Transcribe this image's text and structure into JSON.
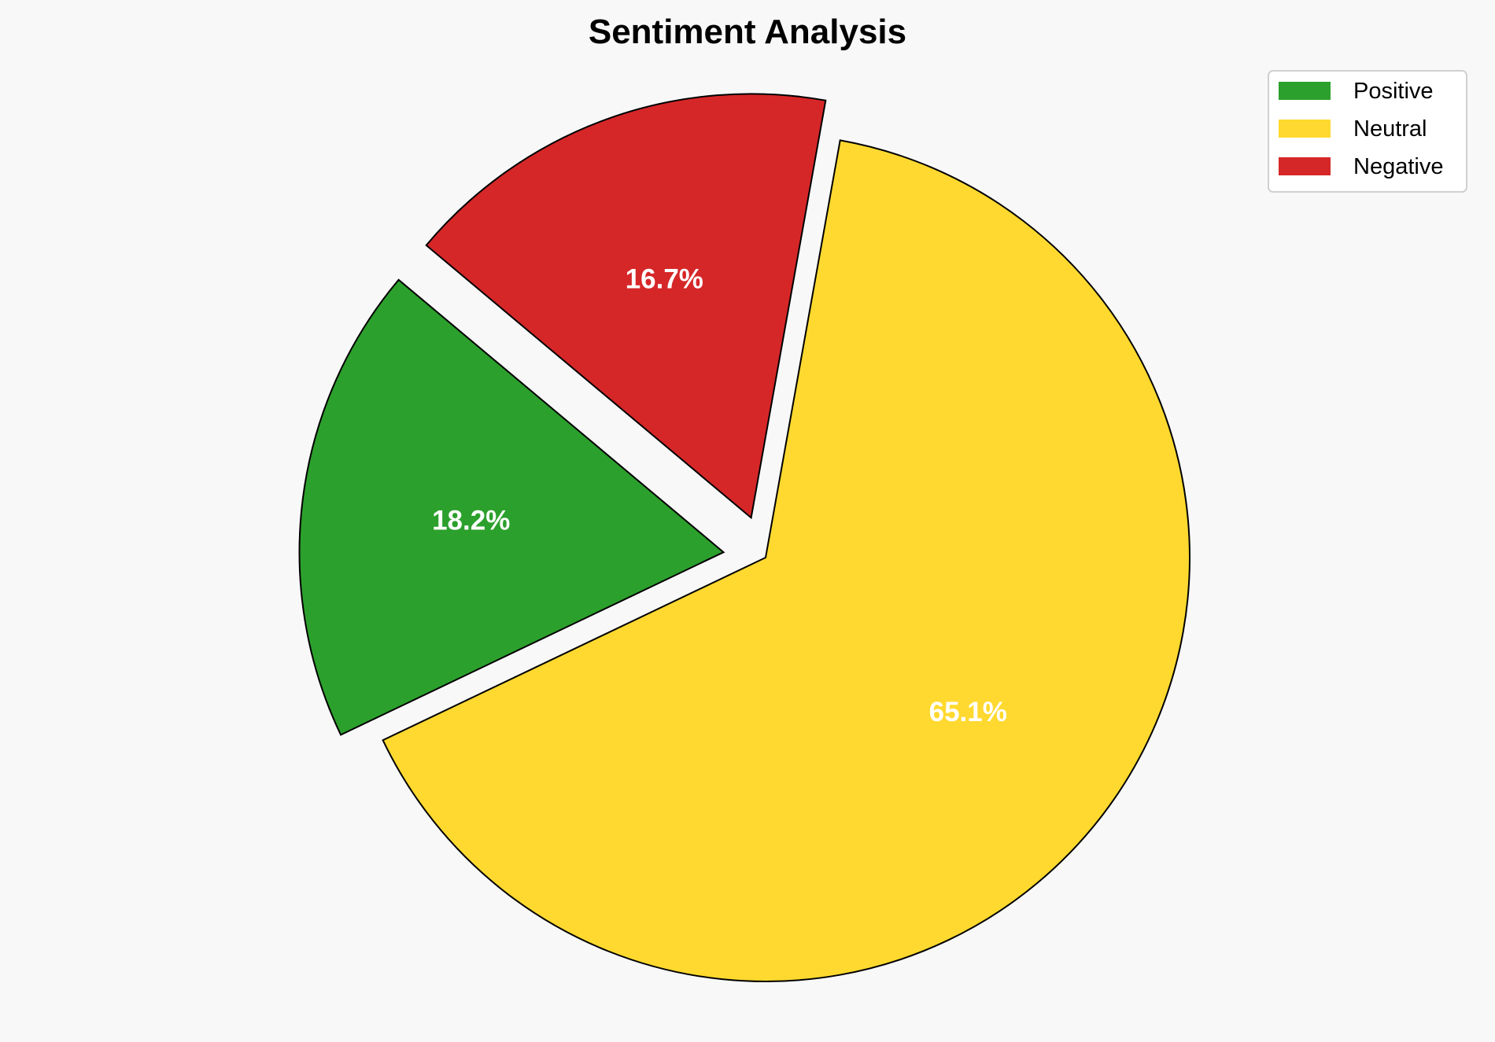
{
  "chart_data": {
    "type": "pie",
    "title": "Sentiment Analysis",
    "categories": [
      "Positive",
      "Neutral",
      "Negative"
    ],
    "values": [
      18.2,
      65.1,
      16.7
    ],
    "labels": [
      "18.2%",
      "65.1%",
      "16.7%"
    ],
    "colors": [
      "#2ca02c",
      "#ffd92f",
      "#d62728"
    ],
    "explode": [
      0.1,
      0,
      0.1
    ],
    "start_angle": 140,
    "counterclockwise": true,
    "edge_color": "#000000",
    "legend_placement": "top-right",
    "background": "#f8f8f8"
  }
}
